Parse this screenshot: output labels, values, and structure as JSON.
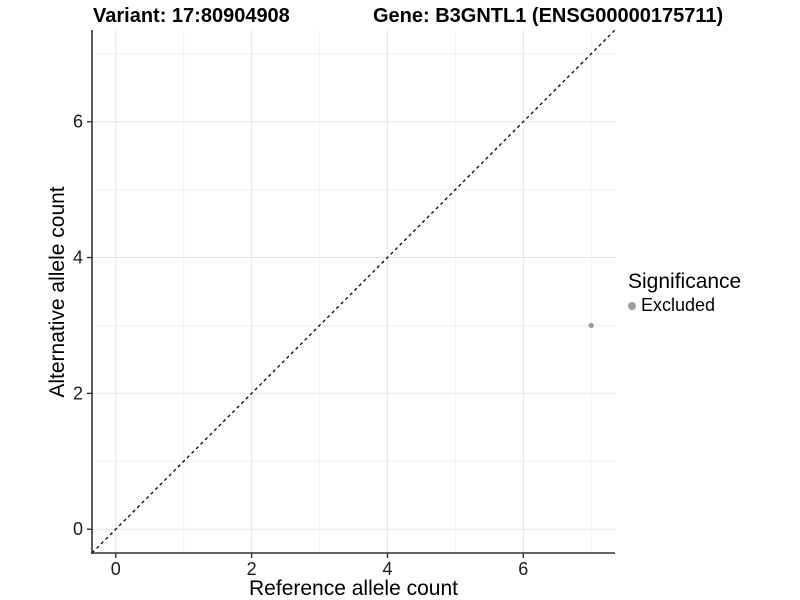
{
  "header": {
    "variant_title": "Variant: 17:80904908",
    "gene_title": "Gene: B3GNTL1 (ENSG00000175711)"
  },
  "legend": {
    "title": "Significance",
    "items": [
      {
        "label": "Excluded",
        "color": "#9e9e9e"
      }
    ]
  },
  "chart_data": {
    "type": "scatter",
    "title_left": "Variant: 17:80904908",
    "title_right": "Gene: B3GNTL1 (ENSG00000175711)",
    "xlabel": "Reference allele count",
    "ylabel": "Alternative allele count",
    "xlim": [
      -0.35,
      7.35
    ],
    "ylim": [
      -0.35,
      7.35
    ],
    "x_ticks": [
      0,
      2,
      4,
      6
    ],
    "y_ticks": [
      0,
      2,
      4,
      6
    ],
    "x_minor_ticks": [
      1,
      3,
      5,
      7
    ],
    "y_minor_ticks": [
      1,
      3,
      5,
      7
    ],
    "grid": true,
    "legend_position": "right",
    "series": [
      {
        "name": "Excluded",
        "color": "#9e9e9e",
        "points": [
          {
            "x": 7,
            "y": 3
          }
        ]
      }
    ],
    "reference_line": {
      "type": "identity",
      "slope": 1,
      "intercept": 0,
      "style": "dashed",
      "color": "#000000"
    }
  },
  "colors": {
    "background": "#ffffff",
    "grid_major": "#e5e5e5",
    "grid_minor": "#f2f2f2",
    "axis_line": "#333333",
    "tick_text": "#1a1a1a",
    "point": "#9e9e9e"
  }
}
